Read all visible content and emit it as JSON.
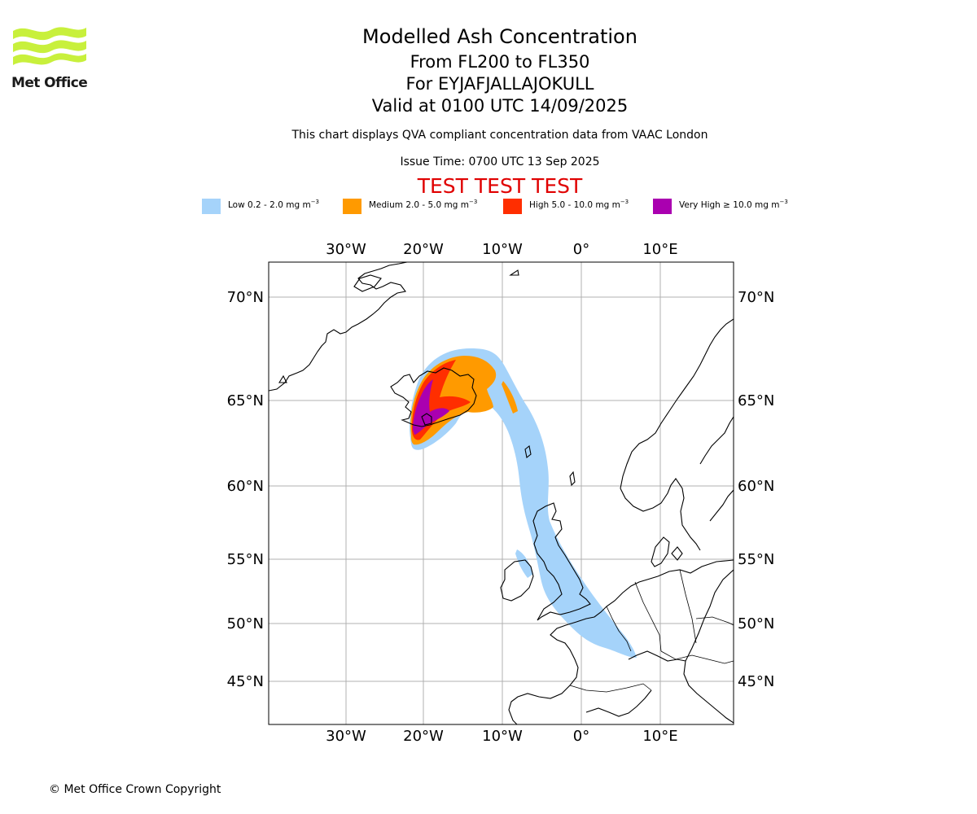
{
  "branding": {
    "logo_text": "Met Office",
    "logo_color": "#c8f03c",
    "copyright": "© Met Office Crown Copyright"
  },
  "header": {
    "title": "Modelled Ash Concentration",
    "levels": "From FL200 to FL350",
    "volcano": "For EYJAFJALLAJOKULL",
    "valid": "Valid at 0100 UTC 14/09/2025",
    "description": "This chart displays QVA compliant concentration data from VAAC London",
    "issue_time": "Issue Time: 0700 UTC 13 Sep 2025",
    "test_banner": "TEST TEST TEST"
  },
  "legend": [
    {
      "label": "Low 0.2 - 2.0 mg m",
      "unit_exp": "−3",
      "color": "#a5d3fa"
    },
    {
      "label": "Medium 2.0 - 5.0 mg m",
      "unit_exp": "−3",
      "color": "#ff9a00"
    },
    {
      "label": "High 5.0 - 10.0 mg m",
      "unit_exp": "−3",
      "color": "#ff2e00"
    },
    {
      "label": "Very High  ≥  10.0 mg m",
      "unit_exp": "−3",
      "color": "#aa00b0"
    }
  ],
  "map": {
    "projection": "Lambert-like conic, North Atlantic / Europe",
    "lon_ticks": [
      "30°W",
      "20°W",
      "10°W",
      "0°",
      "10°E"
    ],
    "lat_ticks": [
      "70°N",
      "65°N",
      "60°N",
      "55°N",
      "50°N",
      "45°N"
    ],
    "grid": true,
    "coastline_color": "#000000"
  }
}
